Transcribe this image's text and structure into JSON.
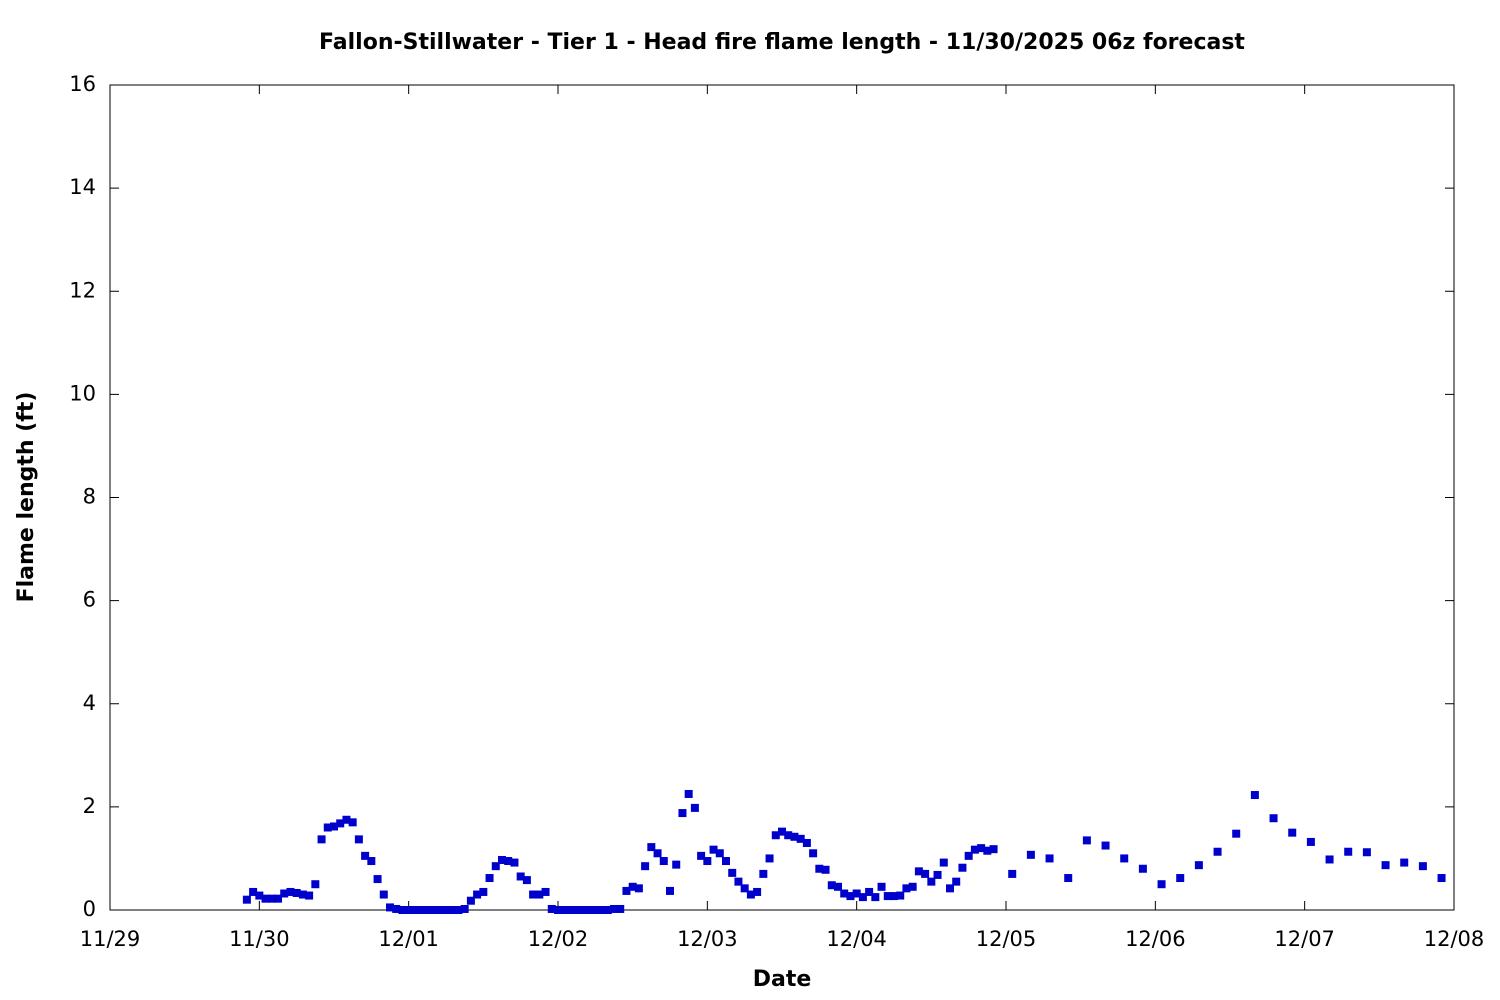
{
  "chart_data": {
    "type": "scatter",
    "title": "Fallon-Stillwater - Tier 1 - Head fire flame length - 11/30/2025 06z forecast",
    "x_label": "Date",
    "y_label": "Flame length (ft)",
    "color": "#0000cc",
    "xlim": [
      0,
      216
    ],
    "xticks": [
      {
        "value": 0,
        "label": "11/29"
      },
      {
        "value": 24,
        "label": "11/30"
      },
      {
        "value": 48,
        "label": "12/01"
      },
      {
        "value": 72,
        "label": "12/02"
      },
      {
        "value": 96,
        "label": "12/03"
      },
      {
        "value": 120,
        "label": "12/04"
      },
      {
        "value": 144,
        "label": "12/05"
      },
      {
        "value": 168,
        "label": "12/06"
      },
      {
        "value": 192,
        "label": "12/07"
      },
      {
        "value": 216,
        "label": "12/08"
      }
    ],
    "ylim": [
      0,
      16
    ],
    "yticks": [
      0,
      2,
      4,
      6,
      8,
      10,
      12,
      14,
      16
    ],
    "x": [
      22,
      23,
      24,
      25,
      26,
      27,
      28,
      29,
      30,
      31,
      32,
      33,
      34,
      35,
      36,
      37,
      38,
      39,
      40,
      41,
      42,
      43,
      44,
      45,
      46,
      47,
      48,
      49,
      50,
      51,
      52,
      53,
      54,
      55,
      56,
      57,
      58,
      59,
      60,
      61,
      62,
      63,
      64,
      65,
      66,
      67,
      68,
      69,
      70,
      71,
      72,
      73,
      74,
      75,
      76,
      77,
      78,
      79,
      80,
      81,
      82,
      83,
      84,
      85,
      86,
      87,
      88,
      89,
      90,
      91,
      92,
      93,
      94,
      95,
      96,
      97,
      98,
      99,
      100,
      101,
      102,
      103,
      104,
      105,
      106,
      107,
      108,
      109,
      110,
      111,
      112,
      113,
      114,
      115,
      116,
      117,
      118,
      119,
      120,
      121,
      122,
      123,
      124,
      125,
      126,
      127,
      128,
      129,
      130,
      131,
      132,
      133,
      134,
      135,
      136,
      137,
      138,
      139,
      140,
      141,
      142,
      145,
      148,
      151,
      154,
      157,
      160,
      163,
      166,
      169,
      172,
      175,
      178,
      181,
      184,
      187,
      190,
      193,
      196,
      199,
      202,
      205,
      208,
      211,
      214
    ],
    "values": [
      0.2,
      0.35,
      0.28,
      0.22,
      0.22,
      0.22,
      0.32,
      0.35,
      0.33,
      0.3,
      0.28,
      0.5,
      1.37,
      1.6,
      1.62,
      1.68,
      1.75,
      1.7,
      1.37,
      1.05,
      0.95,
      0.6,
      0.3,
      0.05,
      0.02,
      0,
      0,
      0,
      0,
      0,
      0,
      0,
      0,
      0,
      0,
      0.02,
      0.18,
      0.3,
      0.35,
      0.62,
      0.85,
      0.97,
      0.95,
      0.92,
      0.65,
      0.58,
      0.3,
      0.3,
      0.35,
      0.02,
      0,
      0,
      0,
      0,
      0,
      0,
      0,
      0,
      0,
      0.02,
      0.02,
      0.37,
      0.45,
      0.42,
      0.85,
      1.22,
      1.1,
      0.95,
      0.37,
      0.88,
      1.88,
      2.25,
      1.98,
      1.05,
      0.95,
      1.17,
      1.1,
      0.95,
      0.72,
      0.55,
      0.42,
      0.3,
      0.35,
      0.7,
      1.0,
      1.45,
      1.52,
      1.45,
      1.42,
      1.38,
      1.3,
      1.1,
      0.8,
      0.78,
      0.48,
      0.45,
      0.32,
      0.27,
      0.32,
      0.25,
      0.35,
      0.25,
      0.45,
      0.27,
      0.27,
      0.28,
      0.42,
      0.45,
      0.75,
      0.7,
      0.55,
      0.68,
      0.92,
      0.42,
      0.55,
      0.82,
      1.05,
      1.17,
      1.2,
      1.15,
      1.18,
      0.7,
      1.07,
      1.0,
      0.62,
      1.35,
      1.25,
      1.0,
      0.8,
      0.5,
      0.62,
      0.87,
      1.13,
      1.48,
      2.23,
      1.78,
      1.5,
      1.32,
      0.98,
      1.13,
      1.12,
      0.87,
      0.92,
      0.85,
      0.62
    ]
  }
}
